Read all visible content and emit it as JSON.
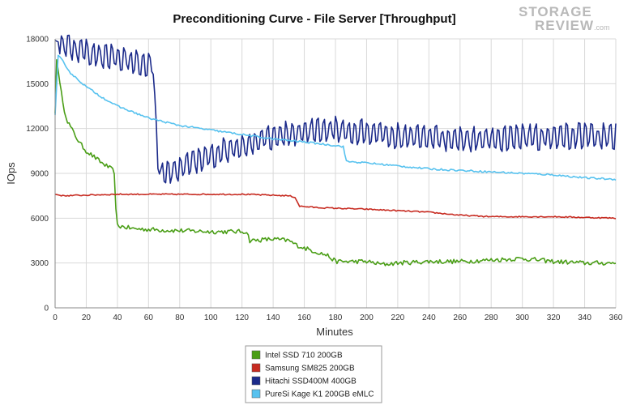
{
  "chart_data": {
    "type": "line",
    "title": "Preconditioning Curve - File Server [Throughput]",
    "xlabel": "Minutes",
    "ylabel": "IOps",
    "xlim": [
      0,
      360
    ],
    "ylim": [
      0,
      18000
    ],
    "x_ticks": [
      0,
      20,
      40,
      60,
      80,
      100,
      120,
      140,
      160,
      180,
      200,
      220,
      240,
      260,
      280,
      300,
      320,
      340,
      360
    ],
    "y_ticks": [
      0,
      3000,
      6000,
      9000,
      12000,
      15000,
      18000
    ],
    "grid": true,
    "legend_position": "bottom-center",
    "series": [
      {
        "name": "Intel SSD 710 200GB",
        "color": "#4a9e16",
        "points": [
          [
            0,
            13000
          ],
          [
            1,
            16600
          ],
          [
            3,
            15200
          ],
          [
            5,
            13600
          ],
          [
            8,
            12500
          ],
          [
            12,
            11700
          ],
          [
            16,
            11000
          ],
          [
            20,
            10500
          ],
          [
            25,
            10100
          ],
          [
            30,
            9700
          ],
          [
            36,
            9300
          ],
          [
            38,
            9100
          ],
          [
            39,
            6500
          ],
          [
            40,
            5500
          ],
          [
            50,
            5300
          ],
          [
            70,
            5200
          ],
          [
            100,
            5100
          ],
          [
            123,
            5100
          ],
          [
            125,
            4500
          ],
          [
            140,
            4600
          ],
          [
            150,
            4500
          ],
          [
            155,
            4200
          ],
          [
            160,
            4000
          ],
          [
            175,
            3500
          ],
          [
            180,
            3100
          ],
          [
            200,
            3100
          ],
          [
            210,
            2900
          ],
          [
            220,
            3000
          ],
          [
            240,
            3100
          ],
          [
            260,
            3100
          ],
          [
            300,
            3300
          ],
          [
            320,
            3100
          ],
          [
            340,
            3000
          ],
          [
            360,
            3000
          ]
        ],
        "noise": 150
      },
      {
        "name": "Samsung SM825 200GB",
        "color": "#c72b21",
        "points": [
          [
            0,
            7600
          ],
          [
            5,
            7500
          ],
          [
            40,
            7600
          ],
          [
            80,
            7600
          ],
          [
            120,
            7600
          ],
          [
            150,
            7500
          ],
          [
            154,
            7400
          ],
          [
            157,
            6800
          ],
          [
            170,
            6700
          ],
          [
            200,
            6600
          ],
          [
            240,
            6400
          ],
          [
            260,
            6200
          ],
          [
            280,
            6100
          ],
          [
            320,
            6100
          ],
          [
            360,
            6000
          ]
        ],
        "noise": 40
      },
      {
        "name": "Hitachi SSD400M 400GB",
        "color": "#1b2a8a",
        "points": [
          [
            0,
            17900
          ],
          [
            10,
            17400
          ],
          [
            30,
            16900
          ],
          [
            50,
            16500
          ],
          [
            63,
            16300
          ],
          [
            64,
            13500
          ],
          [
            66,
            10000
          ],
          [
            68,
            9000
          ],
          [
            80,
            9400
          ],
          [
            100,
            10200
          ],
          [
            120,
            10900
          ],
          [
            140,
            11500
          ],
          [
            160,
            11800
          ],
          [
            180,
            12000
          ],
          [
            200,
            11700
          ],
          [
            220,
            11500
          ],
          [
            240,
            11400
          ],
          [
            260,
            11300
          ],
          [
            280,
            11300
          ],
          [
            300,
            11400
          ],
          [
            320,
            11500
          ],
          [
            340,
            11500
          ],
          [
            360,
            11500
          ]
        ],
        "noise": 600
      },
      {
        "name": "PureSi Kage K1 200GB eMLC",
        "color": "#57c2ef",
        "points": [
          [
            0,
            12900
          ],
          [
            2,
            16900
          ],
          [
            5,
            16500
          ],
          [
            10,
            15700
          ],
          [
            20,
            14800
          ],
          [
            30,
            14100
          ],
          [
            40,
            13500
          ],
          [
            60,
            12700
          ],
          [
            80,
            12200
          ],
          [
            100,
            11900
          ],
          [
            120,
            11600
          ],
          [
            140,
            11300
          ],
          [
            160,
            11100
          ],
          [
            185,
            10800
          ],
          [
            187,
            9800
          ],
          [
            200,
            9700
          ],
          [
            220,
            9500
          ],
          [
            240,
            9300
          ],
          [
            260,
            9200
          ],
          [
            280,
            9100
          ],
          [
            300,
            9000
          ],
          [
            320,
            8900
          ],
          [
            340,
            8700
          ],
          [
            360,
            8600
          ]
        ],
        "noise": 60
      }
    ]
  },
  "watermark": {
    "line1": "STORAGE",
    "line2": "REVIEW",
    "suffix": ".com"
  }
}
